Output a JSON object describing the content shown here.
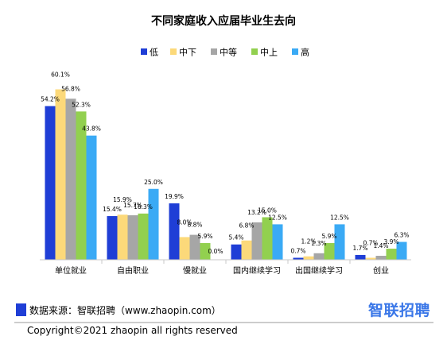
{
  "chart_data": {
    "type": "bar",
    "title": "不同家庭收入应届毕业生去向",
    "categories": [
      "单位就业",
      "自由职业",
      "慢就业",
      "国内继续学习",
      "出国继续学习",
      "创业"
    ],
    "series": [
      {
        "name": "低",
        "color": "#1f3ed6",
        "values": [
          54.2,
          15.4,
          19.9,
          5.4,
          0.7,
          1.7
        ]
      },
      {
        "name": "中下",
        "color": "#fcd97a",
        "values": [
          60.1,
          15.9,
          8.0,
          6.8,
          1.2,
          0.7
        ]
      },
      {
        "name": "中等",
        "color": "#a6a6a6",
        "values": [
          56.8,
          15.7,
          8.8,
          13.2,
          2.3,
          1.4
        ]
      },
      {
        "name": "中上",
        "color": "#92d04f",
        "values": [
          52.3,
          16.3,
          5.9,
          15.0,
          5.9,
          3.9
        ]
      },
      {
        "name": "高",
        "color": "#3aaaf5",
        "values": [
          43.8,
          25.0,
          0.0,
          12.5,
          12.5,
          6.3
        ]
      }
    ],
    "value_suffix": "%",
    "ylim": [
      0,
      65
    ],
    "grid": false,
    "legend_position": "top-center"
  },
  "footer": {
    "source": "数据来源：智联招聘（www.zhaopin.com）",
    "brand": "智联招聘",
    "brand_color": "#3a77e8",
    "copyright": "Copyright©2021 zhaopin all rights reserved"
  }
}
